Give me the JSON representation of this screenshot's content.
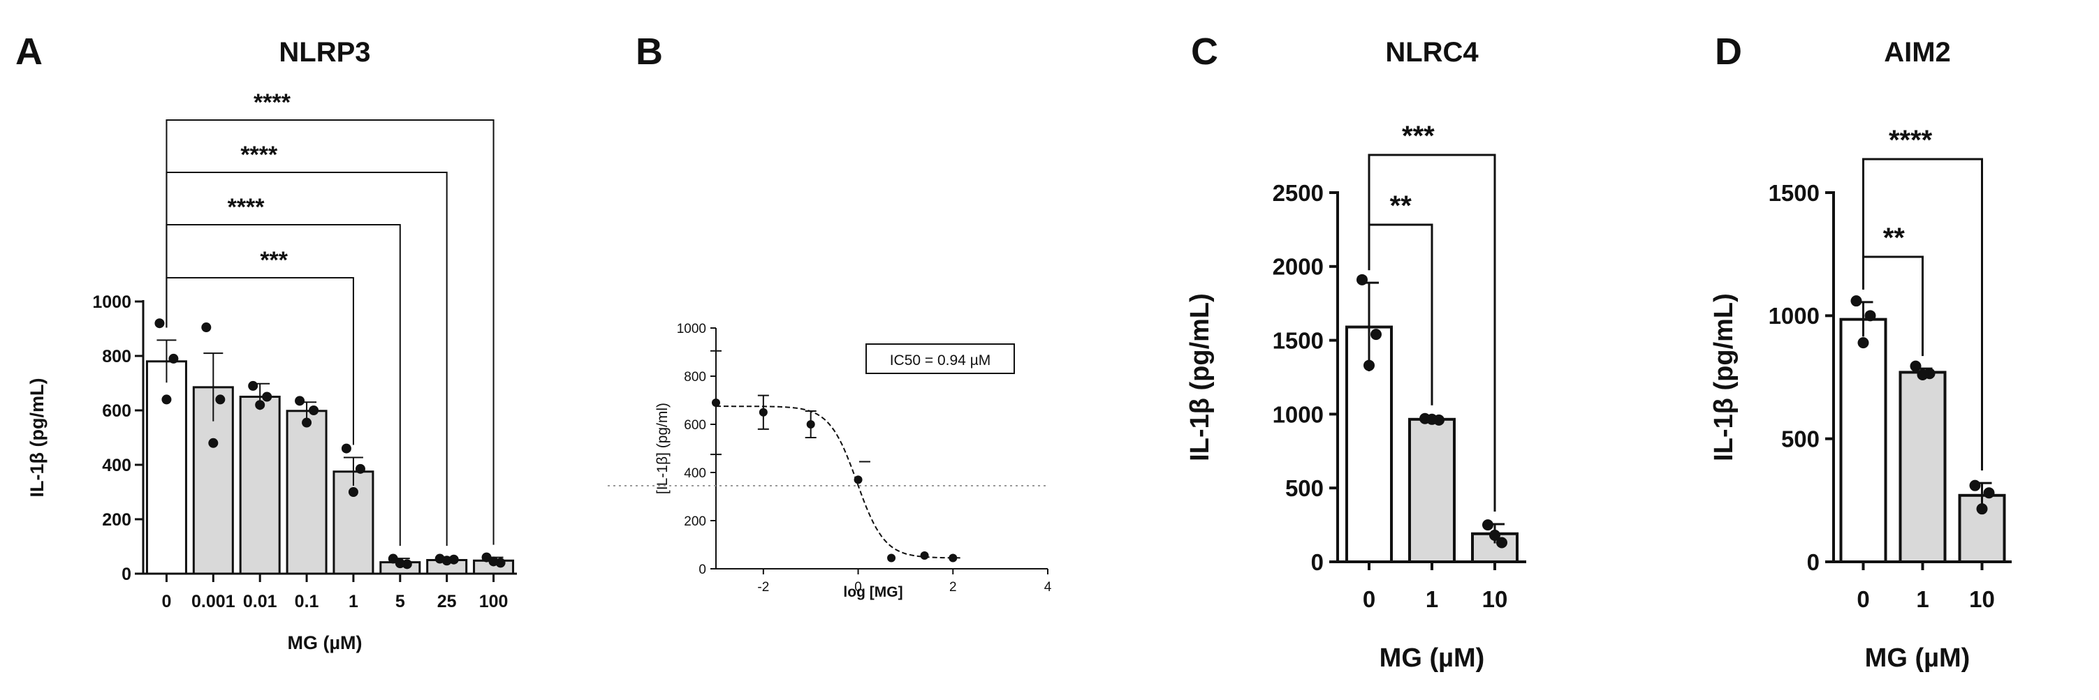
{
  "colors": {
    "bar_fill": "#d9d9d9",
    "control_fill": "#ffffff",
    "ink": "#111111",
    "ref_line": "#9a9a9a"
  },
  "chart_data": [
    {
      "panel": "A",
      "type": "bar",
      "title": "NLRP3",
      "xlabel": "MG (µM)",
      "ylabel": "IL-1β (pg/mL)",
      "ylim": [
        0,
        1000
      ],
      "yticks": [
        0,
        200,
        400,
        600,
        800,
        1000
      ],
      "categories": [
        "0",
        "0.001",
        "0.01",
        "0.1",
        "1",
        "5",
        "25",
        "100"
      ],
      "values": [
        780,
        685,
        650,
        598,
        375,
        42,
        50,
        48
      ],
      "errors": [
        78,
        125,
        48,
        32,
        52,
        14,
        6,
        12
      ],
      "points": [
        [
          920,
          790,
          640
        ],
        [
          905,
          640,
          480
        ],
        [
          690,
          650,
          620
        ],
        [
          635,
          600,
          555
        ],
        [
          460,
          385,
          300
        ],
        [
          55,
          35,
          38
        ],
        [
          55,
          52,
          48
        ],
        [
          60,
          40,
          45
        ]
      ],
      "significance": [
        {
          "from": "0",
          "to": "1",
          "label": "***"
        },
        {
          "from": "0",
          "to": "5",
          "label": "****"
        },
        {
          "from": "0",
          "to": "25",
          "label": "****"
        },
        {
          "from": "0",
          "to": "100",
          "label": "****"
        }
      ]
    },
    {
      "panel": "B",
      "type": "scatter",
      "xlabel": "log [MG]",
      "ylabel": "[IL-1β] (pg/ml)",
      "xlim": [
        -3,
        4
      ],
      "xticks": [
        -2,
        0,
        2,
        4
      ],
      "ylim": [
        0,
        1000
      ],
      "yticks": [
        0,
        200,
        400,
        600,
        800,
        1000
      ],
      "x": [
        -3,
        -2,
        -1,
        0,
        0.7,
        1.4,
        2
      ],
      "y": [
        690,
        650,
        600,
        370,
        45,
        55,
        45
      ],
      "errors": [
        215,
        70,
        55,
        0,
        0,
        0,
        0
      ],
      "fit": {
        "top": 675,
        "bottom": 45,
        "log_ic50": -0.026,
        "hill": 1.5
      },
      "half_max_line": 345,
      "annotation": "IC50 = 0.94 µM"
    },
    {
      "panel": "C",
      "type": "bar",
      "title": "NLRC4",
      "xlabel": "MG (µM)",
      "ylabel": "IL-1β (pg/mL)",
      "ylim": [
        0,
        2500
      ],
      "yticks": [
        0,
        500,
        1000,
        1500,
        2000,
        2500
      ],
      "categories": [
        "0",
        "1",
        "10"
      ],
      "values": [
        1590,
        965,
        190
      ],
      "errors": [
        300,
        10,
        65
      ],
      "points": [
        [
          1910,
          1540,
          1330
        ],
        [
          970,
          960,
          965
        ],
        [
          250,
          130,
          180
        ]
      ],
      "significance": [
        {
          "from": "0",
          "to": "1",
          "label": "**"
        },
        {
          "from": "0",
          "to": "10",
          "label": "***"
        }
      ]
    },
    {
      "panel": "D",
      "type": "bar",
      "title": "AIM2",
      "xlabel": "MG (µM)",
      "ylabel": "IL-1β (pg/mL)",
      "ylim": [
        0,
        1500
      ],
      "yticks": [
        0,
        500,
        1000,
        1500
      ],
      "categories": [
        "0",
        "1",
        "10"
      ],
      "values": [
        985,
        770,
        270
      ],
      "errors": [
        70,
        15,
        50
      ],
      "points": [
        [
          1060,
          1000,
          890
        ],
        [
          795,
          765,
          760
        ],
        [
          310,
          280,
          215
        ]
      ],
      "significance": [
        {
          "from": "0",
          "to": "1",
          "label": "**"
        },
        {
          "from": "0",
          "to": "10",
          "label": "****"
        }
      ]
    }
  ]
}
